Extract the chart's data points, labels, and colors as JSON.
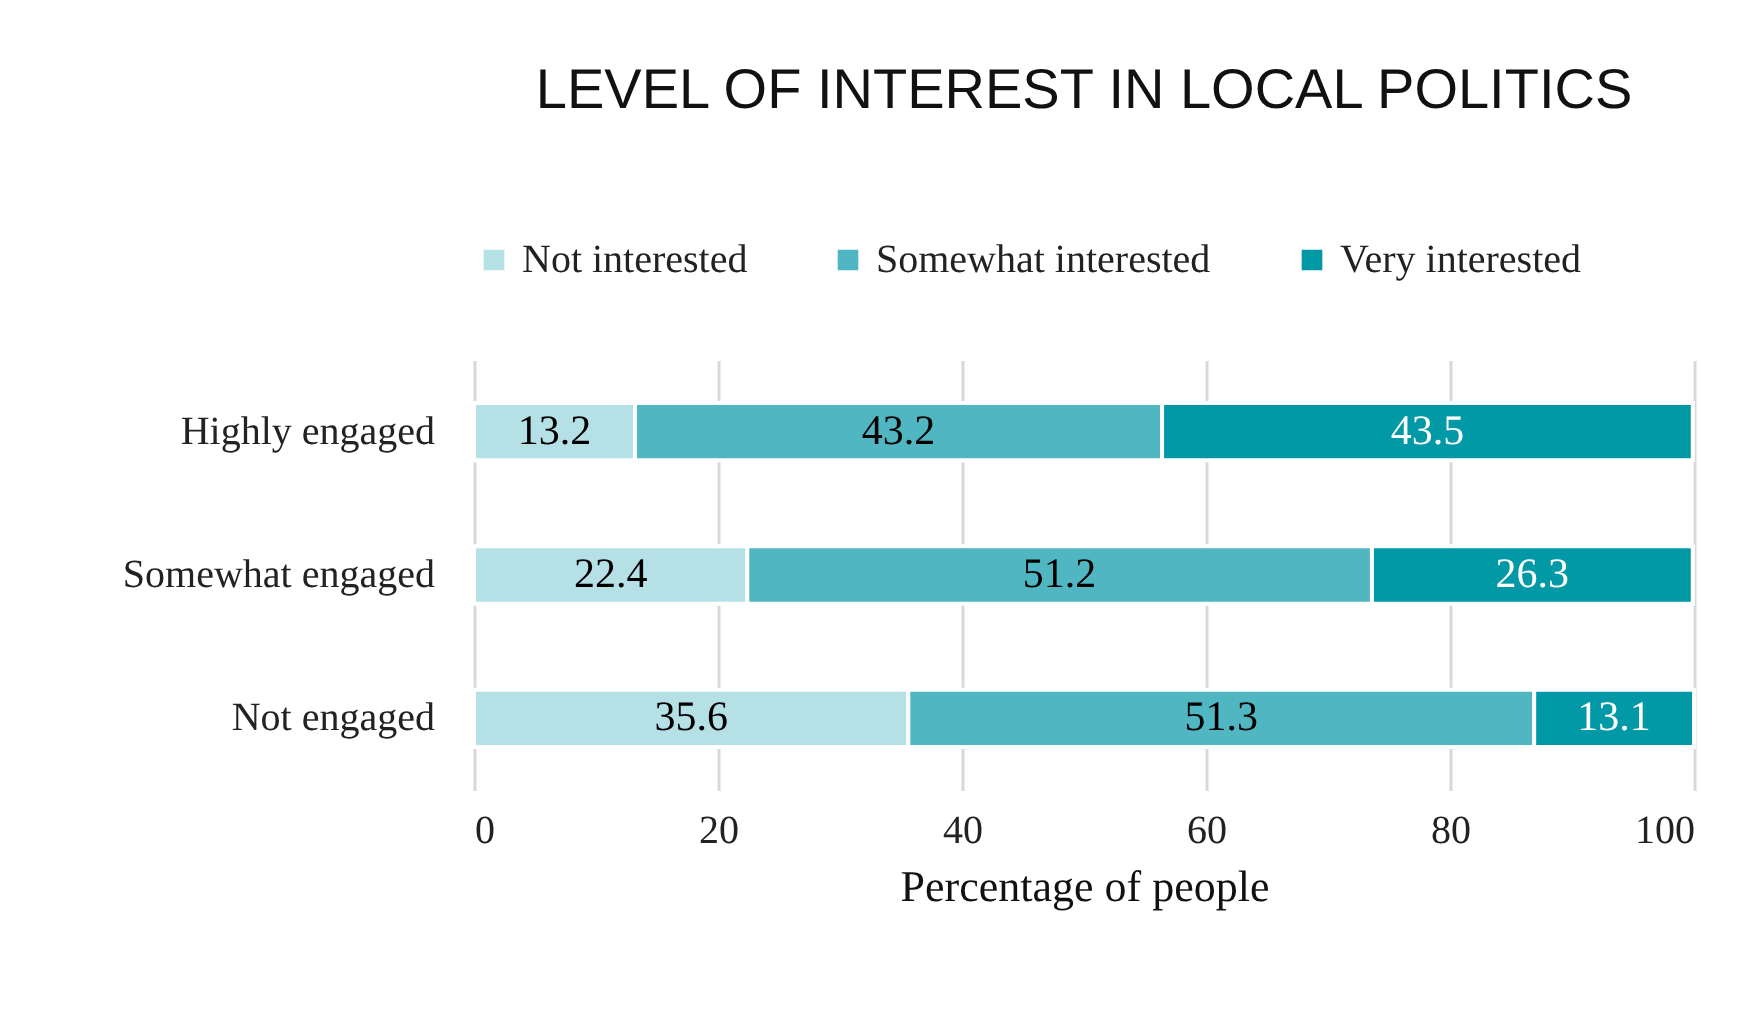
{
  "chart_data": {
    "type": "bar",
    "orientation": "horizontal",
    "stacked": true,
    "title": "LEVEL OF INTEREST IN LOCAL POLITICS",
    "xlabel": "Percentage of people",
    "categories": [
      "Highly engaged",
      "Somewhat engaged",
      "Not engaged"
    ],
    "series": [
      {
        "name": "Not interested",
        "color": "#b4e0e6",
        "values": [
          13.2,
          22.4,
          35.6
        ]
      },
      {
        "name": "Somewhat interested",
        "color": "#4fb6c2",
        "values": [
          43.2,
          51.2,
          51.3
        ]
      },
      {
        "name": "Very interested",
        "color": "#0099a5",
        "values": [
          43.5,
          26.3,
          13.1
        ]
      }
    ],
    "xlim": [
      0,
      100
    ],
    "xticks": [
      0,
      20,
      40,
      60,
      80,
      100
    ],
    "grid": "x",
    "legend": "top",
    "data_labels": true
  }
}
